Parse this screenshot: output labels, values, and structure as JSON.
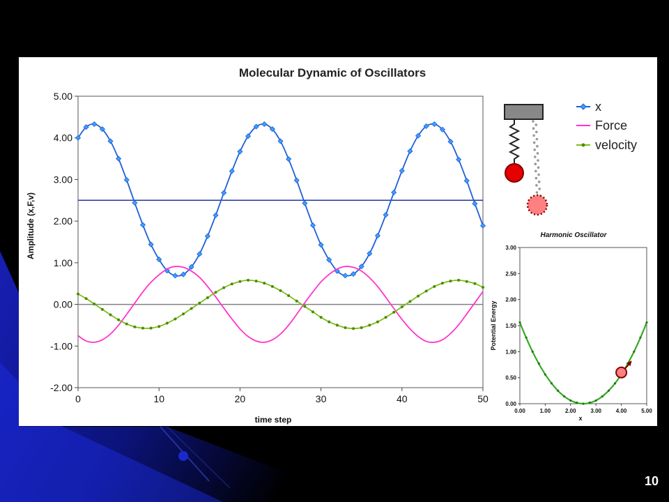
{
  "slide": {
    "number": "10"
  },
  "colors": {
    "x": "#1f5fd6",
    "x_marker": "#3ba0ff",
    "force": "#ff33cc",
    "velocity": "#7bbf1a",
    "velocity_marker": "#4d8a00",
    "reference": "#2233aa",
    "energy": "#33aa22",
    "ball": "#e60000",
    "ball_ghost": "#ff8080"
  },
  "chart_data": [
    {
      "type": "line",
      "title": "Molecular Dynamic of Oscillators",
      "xlabel": "time step",
      "ylabel": "Amplitude (x,F,v)",
      "xlim": [
        0,
        50
      ],
      "ylim": [
        -2.0,
        5.0
      ],
      "x_ticks": [
        "0",
        "10",
        "20",
        "30",
        "40",
        "50"
      ],
      "y_ticks": [
        "-2.00",
        "-1.00",
        "0.00",
        "1.00",
        "2.00",
        "3.00",
        "4.00",
        "5.00"
      ],
      "grid": false,
      "legend_position": "top-right",
      "reference_line": {
        "y": 2.5
      },
      "zero_line": {
        "y": 0.0
      },
      "x": [
        0,
        1,
        2,
        3,
        4,
        5,
        6,
        7,
        8,
        9,
        10,
        11,
        12,
        13,
        14,
        15,
        16,
        17,
        18,
        19,
        20,
        21,
        22,
        23,
        24,
        25,
        26,
        27,
        28,
        29,
        30,
        31,
        32,
        33,
        34,
        35,
        36,
        37,
        38,
        39,
        40,
        41,
        42,
        43,
        44,
        45,
        46,
        47,
        48,
        49,
        50
      ],
      "series": [
        {
          "name": "x",
          "marker": "diamond",
          "values": [
            4.0,
            4.26,
            4.33,
            4.21,
            3.92,
            3.5,
            2.99,
            2.44,
            1.91,
            1.44,
            1.08,
            0.81,
            0.69,
            0.72,
            0.9,
            1.21,
            1.64,
            2.14,
            2.68,
            3.2,
            3.67,
            4.04,
            4.27,
            4.33,
            4.21,
            3.92,
            3.49,
            2.98,
            2.43,
            1.9,
            1.43,
            1.07,
            0.8,
            0.69,
            0.73,
            0.91,
            1.22,
            1.65,
            2.15,
            2.69,
            3.21,
            3.68,
            4.05,
            4.28,
            4.33,
            4.2,
            3.91,
            3.48,
            2.97,
            2.42,
            1.89
          ]
        },
        {
          "name": "Force",
          "marker": "none",
          "values": [
            -0.75,
            -0.88,
            -0.91,
            -0.85,
            -0.71,
            -0.5,
            -0.24,
            0.03,
            0.3,
            0.53,
            0.71,
            0.85,
            0.91,
            0.89,
            0.8,
            0.65,
            0.43,
            0.18,
            -0.09,
            -0.35,
            -0.59,
            -0.77,
            -0.88,
            -0.91,
            -0.85,
            -0.71,
            -0.5,
            -0.24,
            0.04,
            0.3,
            0.54,
            0.72,
            0.85,
            0.91,
            0.89,
            0.8,
            0.64,
            0.43,
            0.17,
            -0.1,
            -0.36,
            -0.59,
            -0.77,
            -0.89,
            -0.91,
            -0.85,
            -0.7,
            -0.49,
            -0.23,
            0.04,
            0.31
          ]
        },
        {
          "name": "velocity",
          "marker": "dot",
          "values": [
            0.25,
            0.14,
            0.01,
            -0.12,
            -0.25,
            -0.37,
            -0.47,
            -0.54,
            -0.57,
            -0.57,
            -0.53,
            -0.45,
            -0.35,
            -0.23,
            -0.1,
            0.03,
            0.16,
            0.29,
            0.4,
            0.49,
            0.55,
            0.58,
            0.56,
            0.51,
            0.43,
            0.33,
            0.21,
            0.08,
            -0.05,
            -0.18,
            -0.31,
            -0.42,
            -0.5,
            -0.56,
            -0.58,
            -0.56,
            -0.5,
            -0.42,
            -0.31,
            -0.19,
            -0.06,
            0.07,
            0.2,
            0.32,
            0.43,
            0.51,
            0.56,
            0.58,
            0.55,
            0.5,
            0.41
          ]
        }
      ]
    },
    {
      "type": "line",
      "title": "Harmonic Oscillator",
      "xlabel": "x",
      "ylabel": "Potential Energy",
      "xlim": [
        0.0,
        5.0
      ],
      "ylim": [
        0.0,
        3.0
      ],
      "x_ticks": [
        "0.00",
        "1.00",
        "2.00",
        "3.00",
        "4.00",
        "5.00"
      ],
      "y_ticks": [
        "0.00",
        "0.50",
        "1.00",
        "1.50",
        "2.00",
        "2.50",
        "3.00"
      ],
      "grid": false,
      "series": [
        {
          "marker": "dot",
          "x": [
            0.0,
            0.25,
            0.5,
            0.75,
            1.0,
            1.25,
            1.5,
            1.75,
            2.0,
            2.25,
            2.5,
            2.75,
            3.0,
            3.25,
            3.5,
            3.75,
            4.0,
            4.25,
            4.5,
            4.75,
            5.0
          ],
          "values": [
            1.56,
            1.27,
            1.0,
            0.77,
            0.56,
            0.39,
            0.25,
            0.14,
            0.06,
            0.02,
            0.0,
            0.02,
            0.06,
            0.14,
            0.25,
            0.39,
            0.56,
            0.77,
            1.0,
            1.27,
            1.56
          ]
        }
      ],
      "marked_point": {
        "x": 4.0,
        "y": 0.6
      }
    }
  ]
}
